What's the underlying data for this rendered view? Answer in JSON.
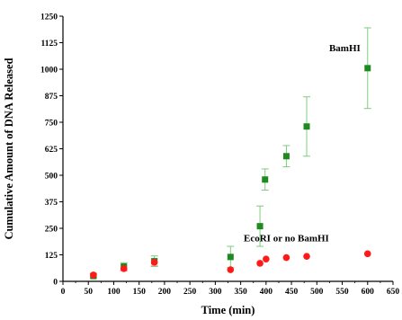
{
  "chart_data": {
    "type": "scatter",
    "title": "",
    "xlabel": "Time (min)",
    "ylabel": "Cumulative Amount of DNA Released",
    "xlim": [
      0,
      650
    ],
    "ylim": [
      0,
      1250
    ],
    "xticks": [
      0,
      50,
      100,
      150,
      200,
      250,
      300,
      350,
      400,
      450,
      500,
      550,
      600,
      650
    ],
    "yticks": [
      0,
      125,
      250,
      375,
      500,
      625,
      750,
      875,
      1000,
      1125,
      1250
    ],
    "grid": false,
    "legend": "none",
    "annotations": [
      {
        "text": "BamHI",
        "x": 555,
        "y": 1085
      },
      {
        "text": "EcoRI or no BamHI",
        "x": 440,
        "y": 188
      }
    ],
    "series": [
      {
        "marker": "square",
        "color": "#1f8a1f",
        "error_color": "#7fcc7f",
        "points": [
          {
            "x": 60,
            "y": 25,
            "err": 8
          },
          {
            "x": 120,
            "y": 70,
            "err": 18
          },
          {
            "x": 180,
            "y": 95,
            "err": 25
          },
          {
            "x": 330,
            "y": 115,
            "err": 50
          },
          {
            "x": 388,
            "y": 260,
            "err": 95
          },
          {
            "x": 398,
            "y": 480,
            "err": 50
          },
          {
            "x": 440,
            "y": 590,
            "err": 50
          },
          {
            "x": 480,
            "y": 730,
            "err": 140
          },
          {
            "x": 600,
            "y": 1005,
            "err": 190
          }
        ]
      },
      {
        "marker": "circle",
        "color": "#ff1a1a",
        "error_color": "#ff9a9a",
        "points": [
          {
            "x": 60,
            "y": 30,
            "err": 8
          },
          {
            "x": 120,
            "y": 60,
            "err": 12
          },
          {
            "x": 180,
            "y": 90,
            "err": 15
          },
          {
            "x": 330,
            "y": 55,
            "err": 0
          },
          {
            "x": 388,
            "y": 85,
            "err": 0
          },
          {
            "x": 400,
            "y": 105,
            "err": 0
          },
          {
            "x": 440,
            "y": 112,
            "err": 0
          },
          {
            "x": 480,
            "y": 118,
            "err": 0
          },
          {
            "x": 600,
            "y": 130,
            "err": 0
          }
        ]
      }
    ]
  }
}
